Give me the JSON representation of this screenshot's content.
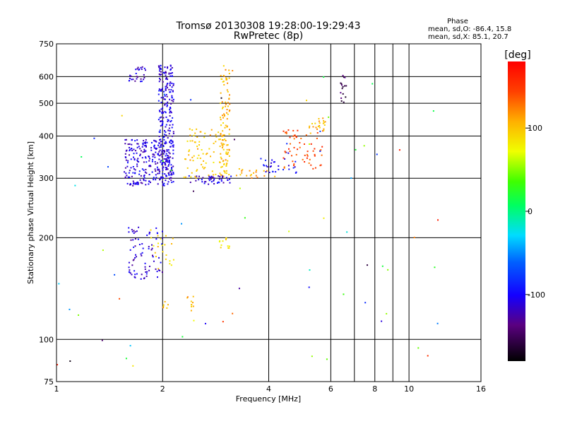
{
  "chart_data": {
    "type": "scatter",
    "title_line1": "Tromsø 20130308 19:28:00-19:29:43",
    "title_line2": "RwPretec (8p)",
    "xlabel": "Frequency [MHz]",
    "ylabel": "Stationary phase Virtual Height [km]",
    "x_scale": "log",
    "y_scale": "log",
    "xlim": [
      1,
      16
    ],
    "ylim": [
      75,
      750
    ],
    "x_ticks": [
      1,
      2,
      4,
      6,
      8,
      10,
      16
    ],
    "y_ticks": [
      75,
      100,
      200,
      300,
      400,
      500,
      600,
      750
    ],
    "x_grid": [
      2,
      4,
      6,
      7,
      8,
      9,
      10
    ],
    "y_grid": [
      100,
      200,
      300,
      400,
      500,
      600
    ],
    "stats": {
      "heading": "Phase",
      "line_o": "mean, sd,O: -86.4, 15.8",
      "line_x": "mean, sd,X: 85.1, 20.7"
    },
    "colorbar": {
      "label": "[deg]",
      "range": [
        -180,
        180
      ],
      "ticks": [
        {
          "value": 100,
          "label": "100"
        },
        {
          "value": 0,
          "label": "0"
        },
        {
          "value": -100,
          "label": "-100"
        }
      ]
    },
    "clusters": [
      {
        "x": [
          1.55,
          2.15
        ],
        "y": [
          285,
          390
        ],
        "n": 240,
        "phase": -110
      },
      {
        "x": [
          1.95,
          2.15
        ],
        "y": [
          300,
          650
        ],
        "n": 240,
        "phase": -108
      },
      {
        "x": [
          1.6,
          1.8
        ],
        "y": [
          580,
          650
        ],
        "n": 28,
        "phase": -112
      },
      {
        "x": [
          1.6,
          2.0
        ],
        "y": [
          150,
          215
        ],
        "n": 80,
        "phase": -112
      },
      {
        "x": [
          1.85,
          2.15
        ],
        "y": [
          160,
          215
        ],
        "n": 22,
        "phase": 95
      },
      {
        "x": [
          2.3,
          3.05
        ],
        "y": [
          300,
          420
        ],
        "n": 90,
        "phase": 100
      },
      {
        "x": [
          2.9,
          3.1
        ],
        "y": [
          300,
          650
        ],
        "n": 90,
        "phase": 105
      },
      {
        "x": [
          2.3,
          3.2
        ],
        "y": [
          288,
          305
        ],
        "n": 45,
        "phase": -110
      },
      {
        "x": [
          3.2,
          4.2
        ],
        "y": [
          300,
          320
        ],
        "n": 20,
        "phase": 110
      },
      {
        "x": [
          3.8,
          4.8
        ],
        "y": [
          310,
          360
        ],
        "n": 30,
        "phase": -100
      },
      {
        "x": [
          4.4,
          5.7
        ],
        "y": [
          320,
          420
        ],
        "n": 60,
        "phase": 145
      },
      {
        "x": [
          5.2,
          5.8
        ],
        "y": [
          400,
          460
        ],
        "n": 22,
        "phase": 105
      },
      {
        "x": [
          6.4,
          6.7
        ],
        "y": [
          500,
          620
        ],
        "n": 16,
        "phase": -150
      },
      {
        "x": [
          2.9,
          3.1
        ],
        "y": [
          185,
          200
        ],
        "n": 12,
        "phase": 80
      },
      {
        "x": [
          2.3,
          2.45
        ],
        "y": [
          120,
          135
        ],
        "n": 10,
        "phase": 110
      },
      {
        "x": [
          2.0,
          2.1
        ],
        "y": [
          120,
          130
        ],
        "n": 6,
        "phase": 105
      },
      {
        "x": [
          1.0,
          12.5
        ],
        "y": [
          80,
          650
        ],
        "n": 70,
        "phase": -20
      }
    ],
    "scatter_seed": 20130308
  }
}
